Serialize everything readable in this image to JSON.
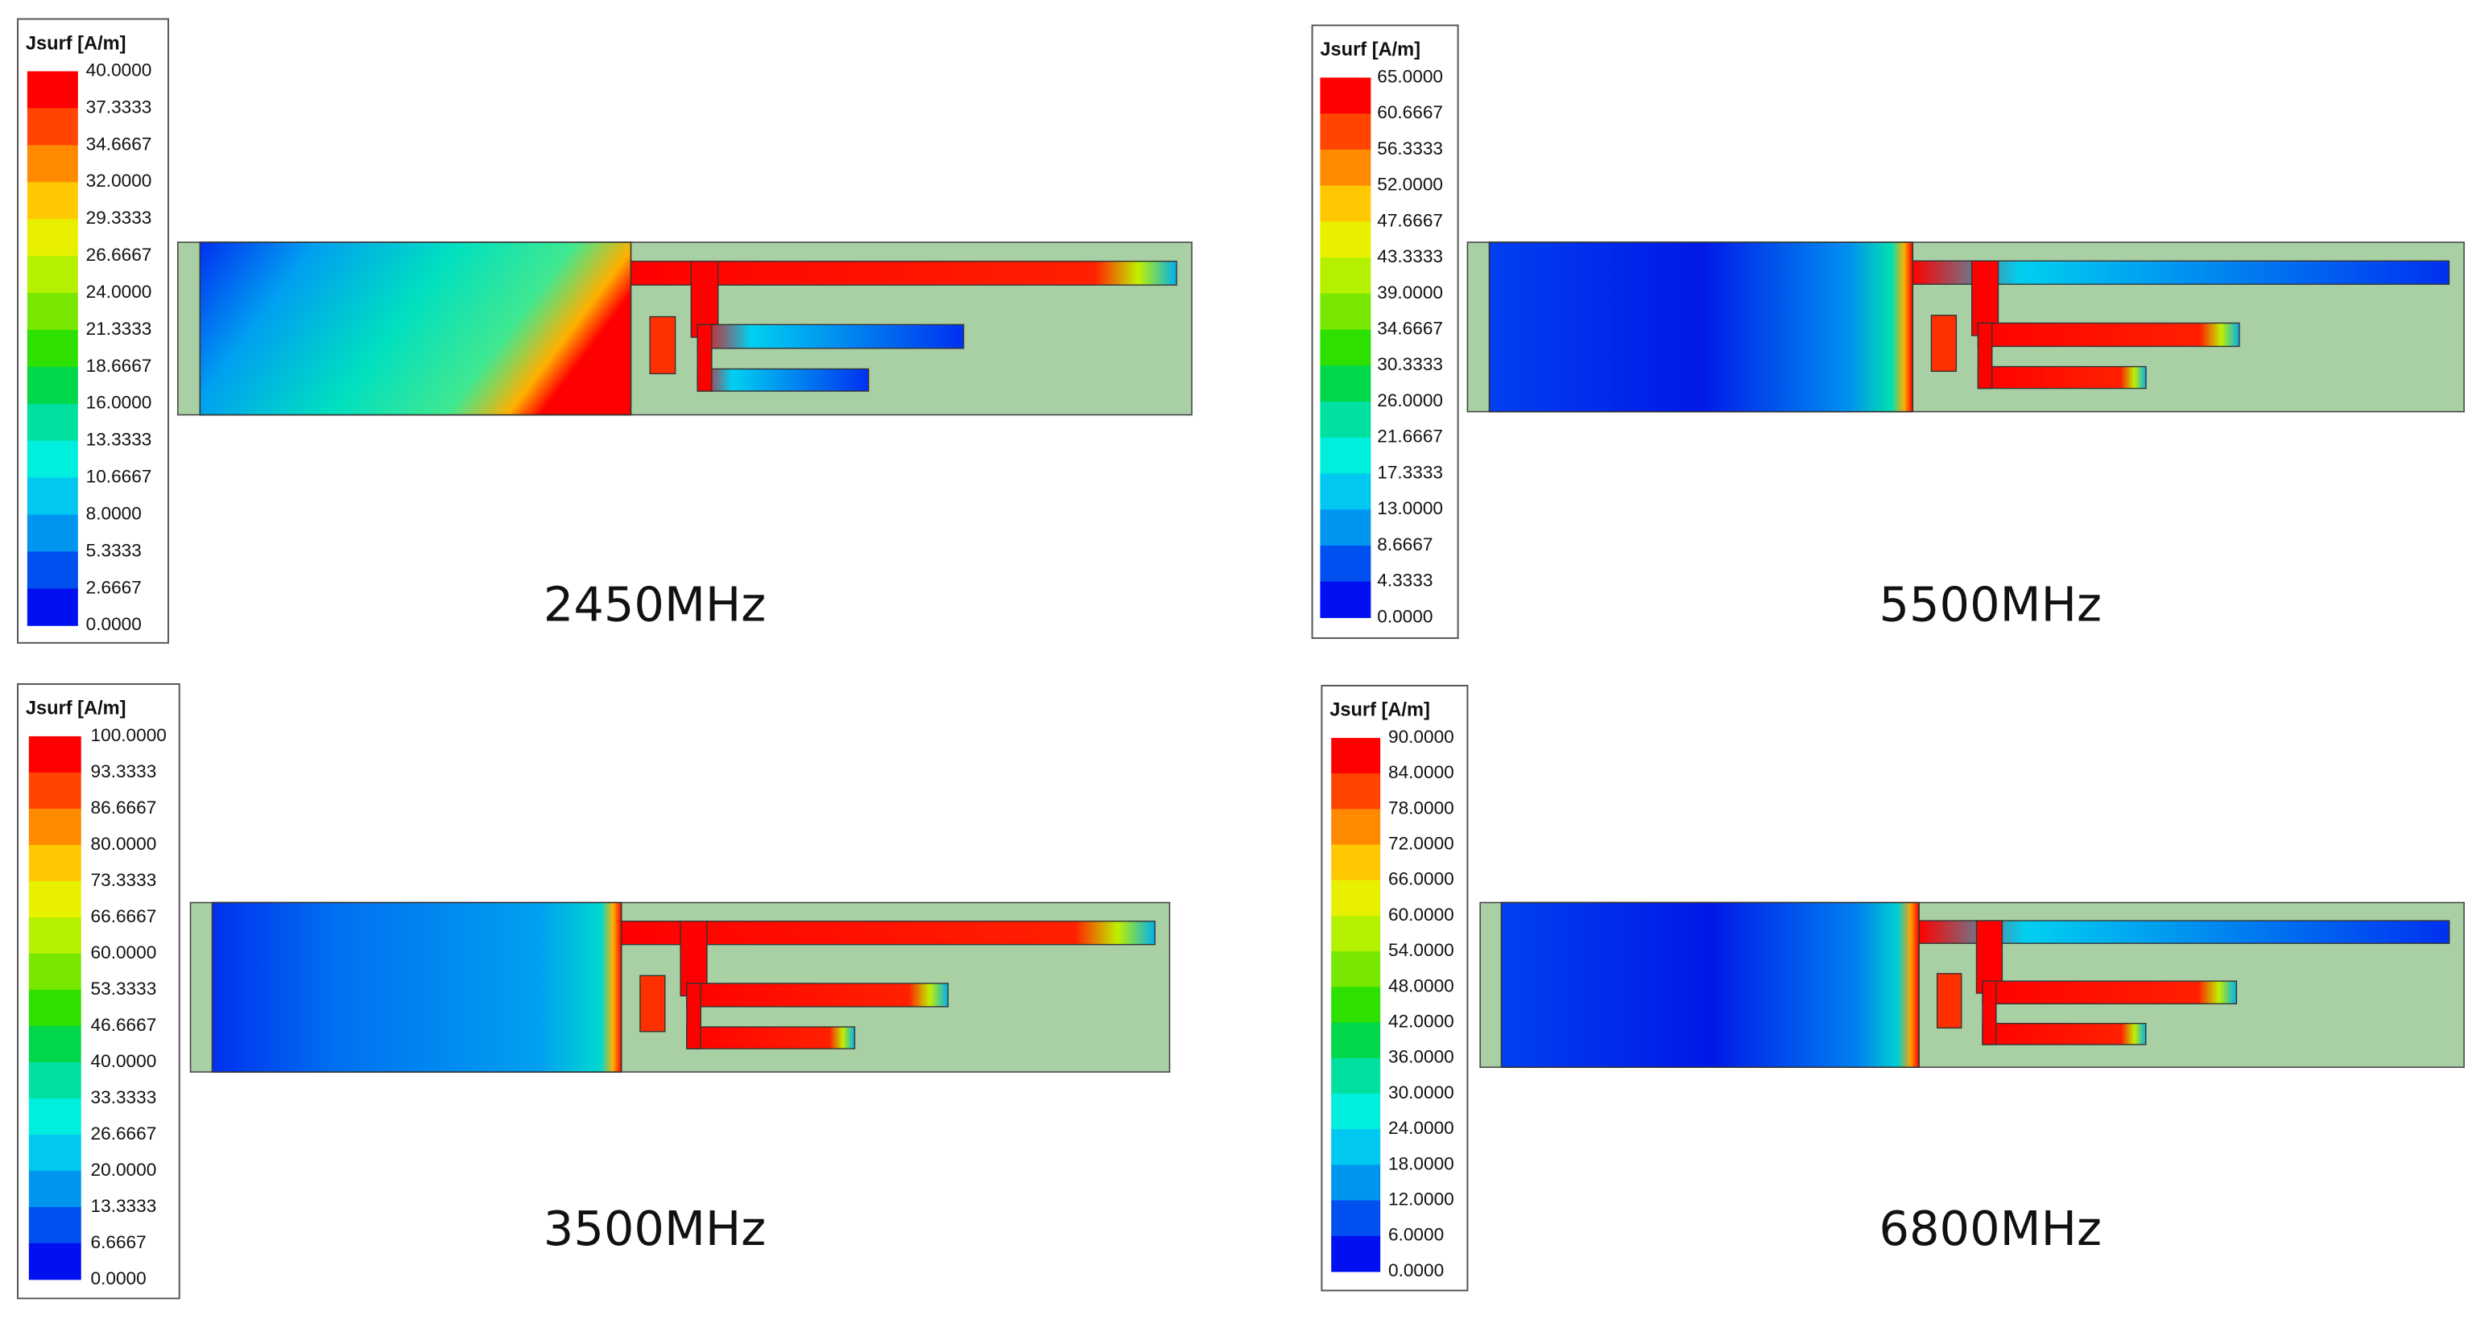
{
  "panels": [
    {
      "legend_title": "Jsurf [A/m]",
      "legend_labels": [
        "40.0000",
        "37.3333",
        "34.6667",
        "32.0000",
        "29.3333",
        "26.6667",
        "24.0000",
        "21.3333",
        "18.6667",
        "16.0000",
        "13.3333",
        "10.6667",
        "8.0000",
        "5.3333",
        "2.6667",
        "0.0000"
      ],
      "frequency": "2450MHz"
    },
    {
      "legend_title": "Jsurf [A/m]",
      "legend_labels": [
        "65.0000",
        "60.6667",
        "56.3333",
        "52.0000",
        "47.6667",
        "43.3333",
        "39.0000",
        "34.6667",
        "30.3333",
        "26.0000",
        "21.6667",
        "17.3333",
        "13.0000",
        "8.6667",
        "4.3333",
        "0.0000"
      ],
      "frequency": "5500MHz"
    },
    {
      "legend_title": "Jsurf [A/m]",
      "legend_labels": [
        "100.0000",
        "93.3333",
        "86.6667",
        "80.0000",
        "73.3333",
        "66.6667",
        "60.0000",
        "53.3333",
        "46.6667",
        "40.0000",
        "33.3333",
        "26.6667",
        "20.0000",
        "13.3333",
        "6.6667",
        "0.0000"
      ],
      "frequency": "3500MHz"
    },
    {
      "legend_title": "Jsurf [A/m]",
      "legend_labels": [
        "90.0000",
        "84.0000",
        "78.0000",
        "72.0000",
        "66.0000",
        "60.0000",
        "54.0000",
        "48.0000",
        "42.0000",
        "36.0000",
        "30.0000",
        "24.0000",
        "18.0000",
        "12.0000",
        "6.0000",
        "0.0000"
      ],
      "frequency": "6800MHz"
    }
  ]
}
